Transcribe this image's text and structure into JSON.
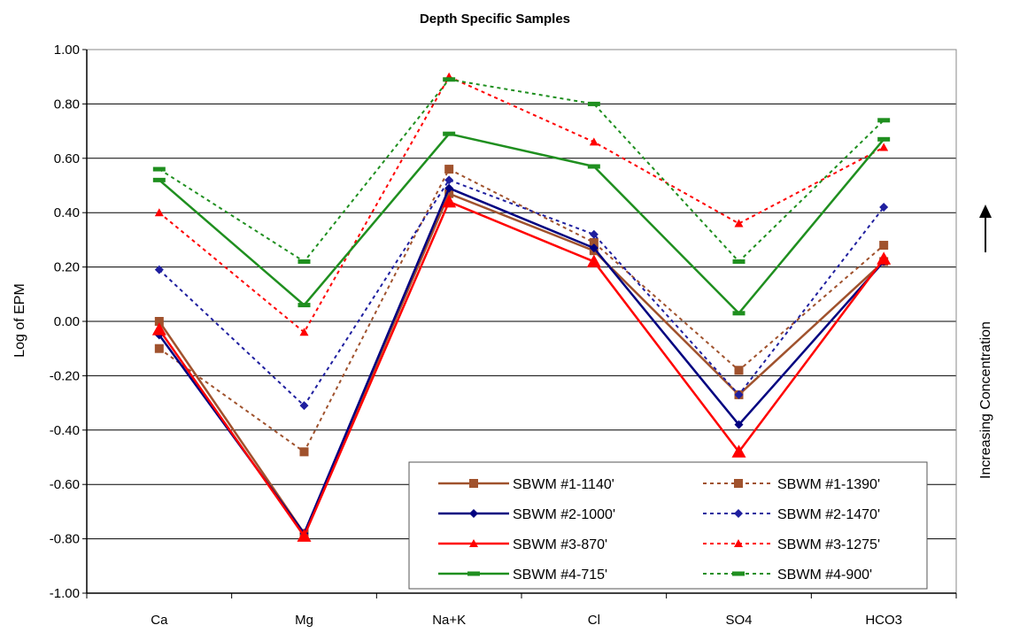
{
  "chart_data": {
    "type": "line",
    "title": "Depth Specific Samples",
    "ylabel": "Log of EPM",
    "right_label": "Increasing Concentration",
    "categories": [
      "Ca",
      "Mg",
      "Na+K",
      "Cl",
      "SO4",
      "HCO3"
    ],
    "ylim": [
      -1.0,
      1.0
    ],
    "yticks": [
      "1.00",
      "0.80",
      "0.60",
      "0.40",
      "0.20",
      "0.00",
      "-0.20",
      "-0.40",
      "-0.60",
      "-0.80",
      "-1.00"
    ],
    "grid": "horizontal",
    "legend_position": "bottom-right",
    "series": [
      {
        "name": "SBWM #1-1140'",
        "values": [
          0.0,
          -0.78,
          0.47,
          0.26,
          -0.27,
          0.22
        ],
        "color": "#a0522d",
        "dash": false,
        "marker": "x-square"
      },
      {
        "name": "SBWM #1-1390'",
        "values": [
          -0.1,
          -0.48,
          0.56,
          0.29,
          -0.18,
          0.28
        ],
        "color": "#a0522d",
        "dash": true,
        "marker": "x-square"
      },
      {
        "name": "SBWM #2-1000'",
        "values": [
          -0.05,
          -0.78,
          0.49,
          0.27,
          -0.38,
          0.22
        ],
        "color": "#000080",
        "dash": false,
        "marker": "diamond"
      },
      {
        "name": "SBWM #2-1470'",
        "values": [
          0.19,
          -0.31,
          0.52,
          0.32,
          -0.27,
          0.42
        ],
        "color": "#1f1f9f",
        "dash": true,
        "marker": "diamond"
      },
      {
        "name": "SBWM #3-870'",
        "values": [
          -0.03,
          -0.79,
          0.44,
          0.22,
          -0.48,
          0.23
        ],
        "color": "#ff0000",
        "dash": false,
        "marker": "triangle"
      },
      {
        "name": "SBWM #3-1275'",
        "values": [
          0.4,
          -0.04,
          0.9,
          0.66,
          0.36,
          0.64
        ],
        "color": "#ff0000",
        "dash": true,
        "marker": "triangle"
      },
      {
        "name": "SBWM #4-715'",
        "values": [
          0.52,
          0.06,
          0.69,
          0.57,
          0.03,
          0.67
        ],
        "color": "#1f8f1f",
        "dash": false,
        "marker": "dash"
      },
      {
        "name": "SBWM #4-900'",
        "values": [
          0.56,
          0.22,
          0.89,
          0.8,
          0.22,
          0.74
        ],
        "color": "#1f8f1f",
        "dash": true,
        "marker": "dash"
      }
    ]
  }
}
